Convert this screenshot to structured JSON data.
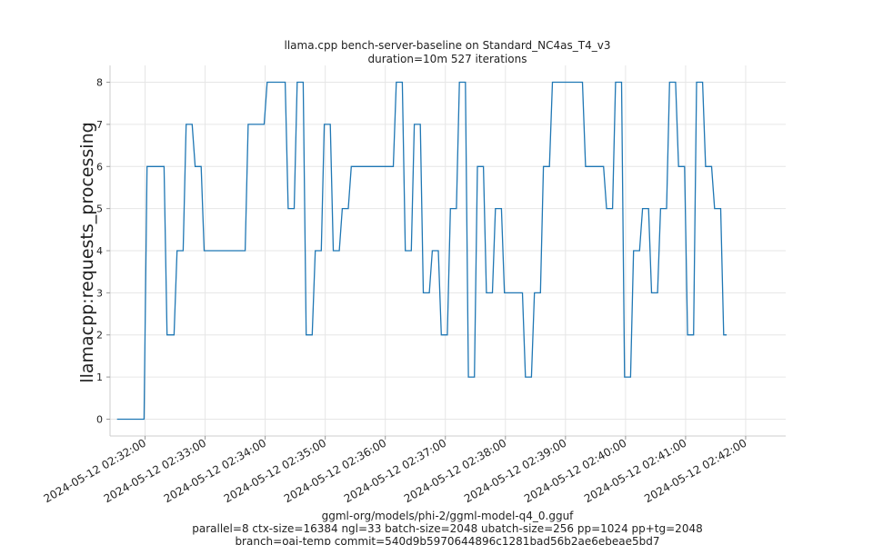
{
  "chart_data": {
    "type": "line",
    "title": "llama.cpp bench-server-baseline on Standard_NC4as_T4_v3",
    "subtitle": "duration=10m 527 iterations",
    "ylabel": "llamacpp:requests_processing",
    "xlabel_lines": [
      "ggml-org/models/phi-2/ggml-model-q4_0.gguf",
      "parallel=8 ctx-size=16384 ngl=33 batch-size=2048 ubatch-size=256 pp=1024 pp+tg=2048",
      "branch=oai-temp commit=540d9b5970644896c1281bad56b2ae6ebeae5bd7"
    ],
    "x_axis": {
      "type": "datetime",
      "range": [
        "2024-05-12 02:31:25",
        "2024-05-12 02:42:40"
      ],
      "ticks": [
        "2024-05-12 02:32:00",
        "2024-05-12 02:33:00",
        "2024-05-12 02:34:00",
        "2024-05-12 02:35:00",
        "2024-05-12 02:36:00",
        "2024-05-12 02:37:00",
        "2024-05-12 02:38:00",
        "2024-05-12 02:39:00",
        "2024-05-12 02:40:00",
        "2024-05-12 02:41:00",
        "2024-05-12 02:42:00"
      ]
    },
    "ylim": [
      -0.4,
      8.4
    ],
    "yticks": [
      0,
      1,
      2,
      3,
      4,
      5,
      6,
      7,
      8
    ],
    "grid": true,
    "color": "#1f77b4",
    "series": [
      {
        "points": [
          [
            "2024-05-12 02:31:32",
            0
          ],
          [
            "2024-05-12 02:31:59",
            0
          ],
          [
            "2024-05-12 02:32:02",
            6
          ],
          [
            "2024-05-12 02:32:19",
            6
          ],
          [
            "2024-05-12 02:32:22",
            2
          ],
          [
            "2024-05-12 02:32:29",
            2
          ],
          [
            "2024-05-12 02:32:32",
            4
          ],
          [
            "2024-05-12 02:32:38",
            4
          ],
          [
            "2024-05-12 02:32:41",
            7
          ],
          [
            "2024-05-12 02:32:47",
            7
          ],
          [
            "2024-05-12 02:32:50",
            6
          ],
          [
            "2024-05-12 02:32:56",
            6
          ],
          [
            "2024-05-12 02:32:59",
            4
          ],
          [
            "2024-05-12 02:33:40",
            4
          ],
          [
            "2024-05-12 02:33:43",
            7
          ],
          [
            "2024-05-12 02:33:59",
            7
          ],
          [
            "2024-05-12 02:34:02",
            8
          ],
          [
            "2024-05-12 02:34:20",
            8
          ],
          [
            "2024-05-12 02:34:23",
            5
          ],
          [
            "2024-05-12 02:34:29",
            5
          ],
          [
            "2024-05-12 02:34:32",
            8
          ],
          [
            "2024-05-12 02:34:38",
            8
          ],
          [
            "2024-05-12 02:34:41",
            2
          ],
          [
            "2024-05-12 02:34:47",
            2
          ],
          [
            "2024-05-12 02:34:50",
            4
          ],
          [
            "2024-05-12 02:34:56",
            4
          ],
          [
            "2024-05-12 02:34:59",
            7
          ],
          [
            "2024-05-12 02:35:05",
            7
          ],
          [
            "2024-05-12 02:35:08",
            4
          ],
          [
            "2024-05-12 02:35:14",
            4
          ],
          [
            "2024-05-12 02:35:17",
            5
          ],
          [
            "2024-05-12 02:35:23",
            5
          ],
          [
            "2024-05-12 02:35:26",
            6
          ],
          [
            "2024-05-12 02:36:08",
            6
          ],
          [
            "2024-05-12 02:36:11",
            8
          ],
          [
            "2024-05-12 02:36:17",
            8
          ],
          [
            "2024-05-12 02:36:20",
            4
          ],
          [
            "2024-05-12 02:36:26",
            4
          ],
          [
            "2024-05-12 02:36:29",
            7
          ],
          [
            "2024-05-12 02:36:35",
            7
          ],
          [
            "2024-05-12 02:36:38",
            3
          ],
          [
            "2024-05-12 02:36:44",
            3
          ],
          [
            "2024-05-12 02:36:47",
            4
          ],
          [
            "2024-05-12 02:36:53",
            4
          ],
          [
            "2024-05-12 02:36:56",
            2
          ],
          [
            "2024-05-12 02:37:02",
            2
          ],
          [
            "2024-05-12 02:37:05",
            5
          ],
          [
            "2024-05-12 02:37:11",
            5
          ],
          [
            "2024-05-12 02:37:14",
            8
          ],
          [
            "2024-05-12 02:37:20",
            8
          ],
          [
            "2024-05-12 02:37:23",
            1
          ],
          [
            "2024-05-12 02:37:29",
            1
          ],
          [
            "2024-05-12 02:37:32",
            6
          ],
          [
            "2024-05-12 02:37:38",
            6
          ],
          [
            "2024-05-12 02:37:41",
            3
          ],
          [
            "2024-05-12 02:37:47",
            3
          ],
          [
            "2024-05-12 02:37:50",
            5
          ],
          [
            "2024-05-12 02:37:56",
            5
          ],
          [
            "2024-05-12 02:37:59",
            3
          ],
          [
            "2024-05-12 02:38:17",
            3
          ],
          [
            "2024-05-12 02:38:20",
            1
          ],
          [
            "2024-05-12 02:38:26",
            1
          ],
          [
            "2024-05-12 02:38:29",
            3
          ],
          [
            "2024-05-12 02:38:35",
            3
          ],
          [
            "2024-05-12 02:38:38",
            6
          ],
          [
            "2024-05-12 02:38:44",
            6
          ],
          [
            "2024-05-12 02:38:47",
            8
          ],
          [
            "2024-05-12 02:39:17",
            8
          ],
          [
            "2024-05-12 02:39:20",
            6
          ],
          [
            "2024-05-12 02:39:38",
            6
          ],
          [
            "2024-05-12 02:39:41",
            5
          ],
          [
            "2024-05-12 02:39:47",
            5
          ],
          [
            "2024-05-12 02:39:50",
            8
          ],
          [
            "2024-05-12 02:39:56",
            8
          ],
          [
            "2024-05-12 02:39:59",
            1
          ],
          [
            "2024-05-12 02:40:05",
            1
          ],
          [
            "2024-05-12 02:40:08",
            4
          ],
          [
            "2024-05-12 02:40:14",
            4
          ],
          [
            "2024-05-12 02:40:17",
            5
          ],
          [
            "2024-05-12 02:40:23",
            5
          ],
          [
            "2024-05-12 02:40:26",
            3
          ],
          [
            "2024-05-12 02:40:32",
            3
          ],
          [
            "2024-05-12 02:40:35",
            5
          ],
          [
            "2024-05-12 02:40:41",
            5
          ],
          [
            "2024-05-12 02:40:44",
            8
          ],
          [
            "2024-05-12 02:40:50",
            8
          ],
          [
            "2024-05-12 02:40:53",
            6
          ],
          [
            "2024-05-12 02:40:59",
            6
          ],
          [
            "2024-05-12 02:41:02",
            2
          ],
          [
            "2024-05-12 02:41:08",
            2
          ],
          [
            "2024-05-12 02:41:11",
            8
          ],
          [
            "2024-05-12 02:41:17",
            8
          ],
          [
            "2024-05-12 02:41:20",
            6
          ],
          [
            "2024-05-12 02:41:26",
            6
          ],
          [
            "2024-05-12 02:41:29",
            5
          ],
          [
            "2024-05-12 02:41:35",
            5
          ],
          [
            "2024-05-12 02:41:38",
            2
          ],
          [
            "2024-05-12 02:41:41",
            2
          ]
        ]
      }
    ]
  }
}
